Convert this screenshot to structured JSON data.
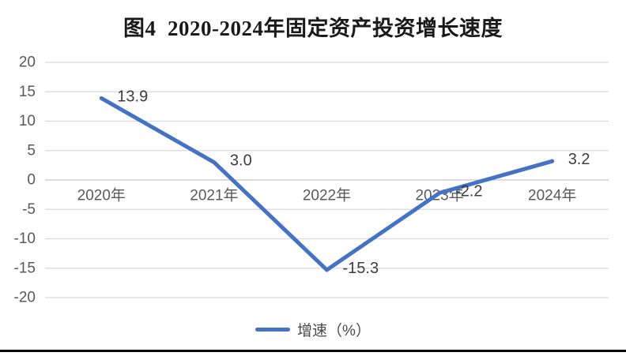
{
  "chart_data": {
    "type": "line",
    "title": "图4  2020-2024年固定资产投资增长速度",
    "categories": [
      "2020年",
      "2021年",
      "2022年",
      "2023年",
      "2024年"
    ],
    "series": [
      {
        "name": "增速（%）",
        "values": [
          13.9,
          3.0,
          -15.3,
          -2.2,
          3.2
        ],
        "data_labels": [
          "13.9",
          "3.0",
          "-15.3",
          "-2.2",
          "3.2"
        ]
      }
    ],
    "ylim": [
      -20,
      20
    ],
    "yticks": [
      20,
      15,
      10,
      5,
      0,
      -5,
      -10,
      -15,
      -20
    ],
    "xlabel": "",
    "ylabel": "",
    "grid": true,
    "legend_position": "bottom",
    "colors": {
      "line": "#4472C4",
      "gridline": "#D9D9D9",
      "axis_tick_text": "#595959",
      "category_text": "#595959",
      "data_label_text": "#3d3d3d",
      "title_text": "#1a1a1a",
      "bottom_border": "#000000"
    }
  }
}
